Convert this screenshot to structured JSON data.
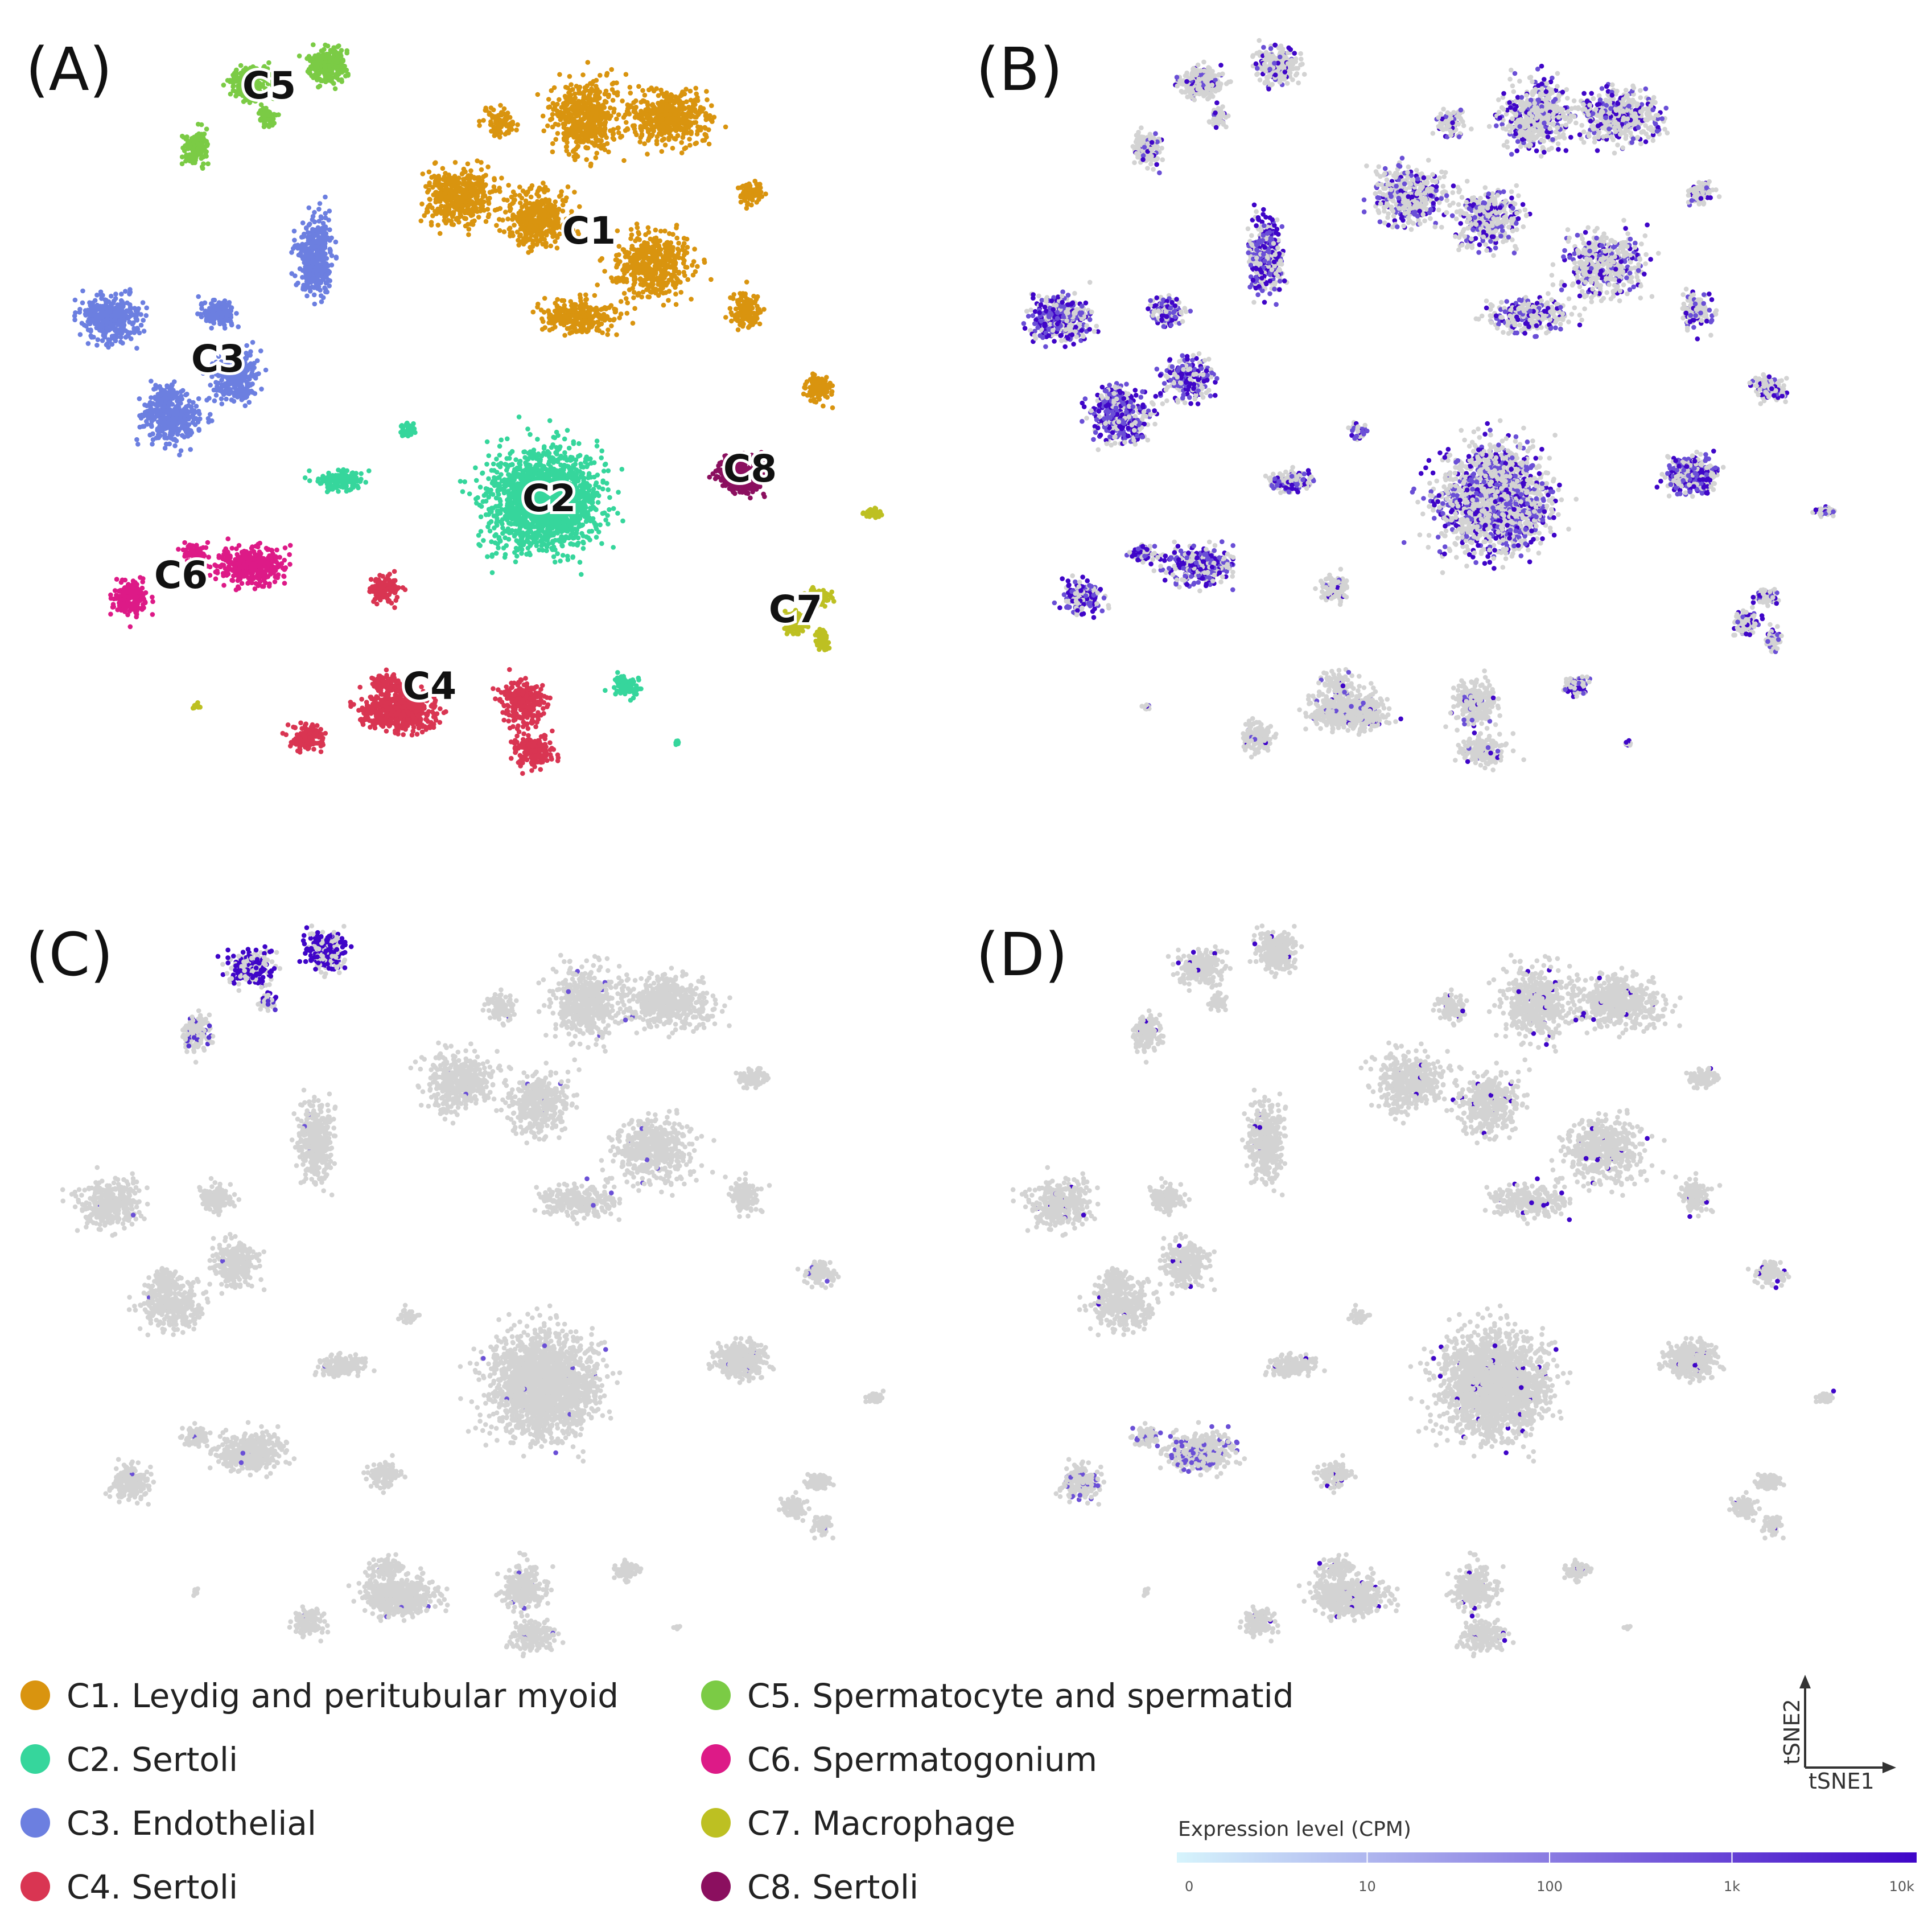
{
  "panels": [
    {
      "letter": "(A)",
      "mode": "cluster"
    },
    {
      "letter": "(B)",
      "mode": "expression",
      "profile": "broad"
    },
    {
      "letter": "(C)",
      "mode": "expression",
      "profile": "spermatocyte"
    },
    {
      "letter": "(D)",
      "mode": "expression",
      "profile": "sparse"
    }
  ],
  "chart_data": {
    "type": "scatter",
    "xlabel": "tSNE1",
    "ylabel": "tSNE2",
    "background_point_color": "#d3d3d3",
    "clusters": [
      {
        "id": "C1",
        "name": "C1. Leydig and peritubular myoid",
        "color": "#D9940F"
      },
      {
        "id": "C2",
        "name": "C2. Sertoli",
        "color": "#36D69C"
      },
      {
        "id": "C3",
        "name": "C3. Endothelial",
        "color": "#6C7FE0"
      },
      {
        "id": "C4",
        "name": "C4. Sertoli",
        "color": "#D93552"
      },
      {
        "id": "C5",
        "name": "C5. Spermatocyte and spermatid",
        "color": "#7BCB45"
      },
      {
        "id": "C6",
        "name": "C6. Spermatogonium",
        "color": "#DD1A87"
      },
      {
        "id": "C7",
        "name": "C7. Macrophage",
        "color": "#BDC022"
      },
      {
        "id": "C8",
        "name": "C8. Sertoli",
        "color": "#8B0F5F"
      }
    ],
    "colorbar": {
      "title": "Expression level (CPM)",
      "ticks": [
        "0",
        "10",
        "100",
        "1k",
        "10k"
      ],
      "colors": [
        "#d6f4fc",
        "#3f05c8"
      ]
    }
  }
}
